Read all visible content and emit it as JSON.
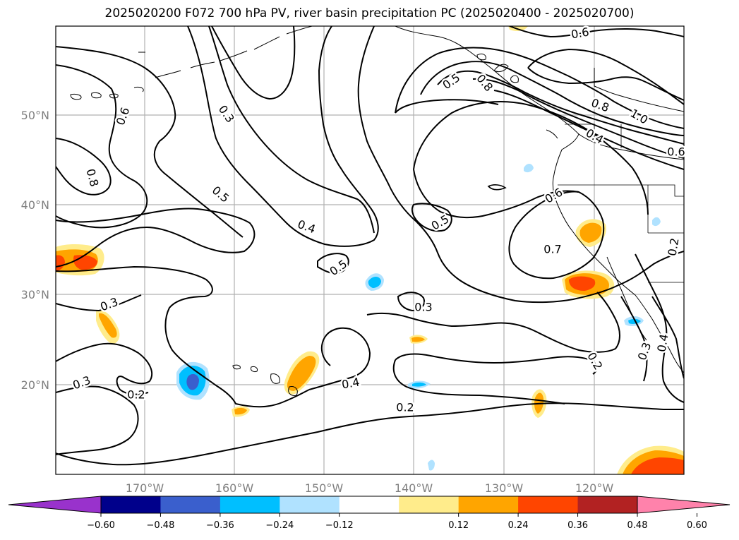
{
  "title": "2025020200 F072 700 hPa PV, river basin precipitation PC (2025020400 - 2025020700)",
  "map": {
    "lat_labels": [
      "50°N",
      "40°N",
      "30°N",
      "20°N"
    ],
    "lon_labels": [
      "170°W",
      "160°W",
      "150°W",
      "140°W",
      "130°W",
      "120°W"
    ],
    "contour_labels": [
      "0.6",
      "0.8",
      "0.3",
      "0.5",
      "0.4",
      "0.5",
      "0.3",
      "0.2",
      "0.3",
      "0.4",
      "0.2",
      "0.5",
      "0.3",
      "0.6",
      "0.5",
      "0.7",
      "0.6",
      "0.8",
      "1.0",
      "0.4",
      "0.8",
      "0.2",
      "0.3",
      "0.4",
      "0.2",
      "0.6"
    ],
    "colors": {
      "coast": "#000000",
      "grid": "#b0b0b0",
      "contour": "#000000"
    }
  },
  "colorbar": {
    "tick_labels": [
      "−0.60",
      "−0.48",
      "−0.36",
      "−0.24",
      "−0.12",
      "0.12",
      "0.24",
      "0.36",
      "0.48",
      "0.60"
    ],
    "colors": [
      "#9932cc",
      "#00008b",
      "#3a5fcd",
      "#00bfff",
      "#b0e2ff",
      "#ffffff",
      "#ffec8b",
      "#ffa500",
      "#ff4500",
      "#b22222",
      "#ff82ab"
    ]
  }
}
